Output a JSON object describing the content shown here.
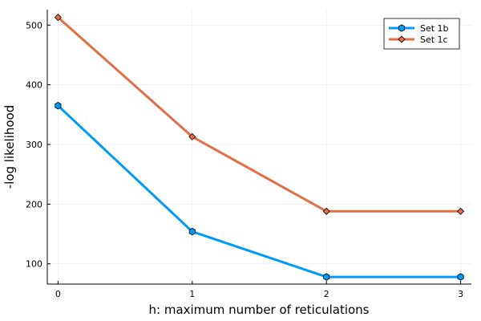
{
  "chart_data": {
    "type": "line",
    "xlabel": "h: maximum number of reticulations",
    "ylabel": "-log likelihood",
    "x": [
      0,
      1,
      2,
      3
    ],
    "xlim": [
      -0.08,
      3.08
    ],
    "ylim": [
      66,
      526
    ],
    "xticks": [
      0,
      1,
      2,
      3
    ],
    "yticks": [
      100,
      200,
      300,
      400,
      500
    ],
    "grid": true,
    "legend_position": "top-right",
    "series": [
      {
        "name": "Set 1b",
        "values": [
          365,
          154,
          78,
          78
        ],
        "color": "#009AF9",
        "marker": "hexagon"
      },
      {
        "name": "Set 1c",
        "values": [
          513,
          313,
          188,
          188
        ],
        "color": "#E26F46",
        "marker": "diamond"
      }
    ]
  }
}
